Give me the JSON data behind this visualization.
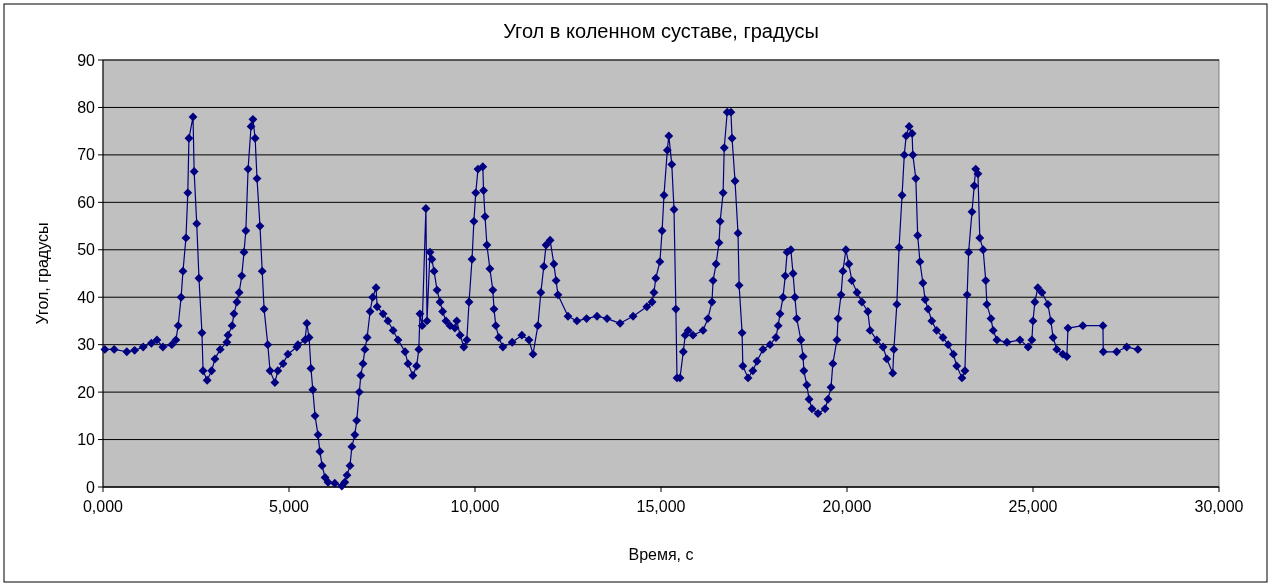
{
  "chart_data": {
    "type": "line",
    "title": "Угол в коленном суставе, градусы",
    "xlabel": "Время, с",
    "ylabel": "Угол, градусы",
    "marker": "diamond",
    "line_style": "solid",
    "grid": "y",
    "xlim": [
      0,
      30000
    ],
    "xticks": [
      {
        "value": 0,
        "label": "0,000"
      },
      {
        "value": 5000,
        "label": "5,000"
      },
      {
        "value": 10000,
        "label": "10,000"
      },
      {
        "value": 15000,
        "label": "15,000"
      },
      {
        "value": 20000,
        "label": "20,000"
      },
      {
        "value": 25000,
        "label": "25,000"
      },
      {
        "value": 30000,
        "label": "30,000"
      }
    ],
    "ylim": [
      0,
      90
    ],
    "yticks": [
      0,
      10,
      20,
      30,
      40,
      50,
      60,
      70,
      80,
      90
    ],
    "series": [
      {
        "color": "#000080",
        "x": [
          50,
          300,
          640,
          850,
          1080,
          1300,
          1450,
          1610,
          1850,
          1960,
          2020,
          2100,
          2150,
          2230,
          2280,
          2310,
          2420,
          2450,
          2520,
          2580,
          2660,
          2690,
          2800,
          2920,
          3010,
          3150,
          3330,
          3360,
          3470,
          3520,
          3600,
          3660,
          3730,
          3790,
          3840,
          3900,
          3980,
          4030,
          4090,
          4140,
          4220,
          4280,
          4330,
          4430,
          4490,
          4620,
          4700,
          4840,
          4970,
          5210,
          5240,
          5430,
          5480,
          5540,
          5590,
          5640,
          5700,
          5780,
          5830,
          5890,
          5970,
          6050,
          6230,
          6420,
          6500,
          6560,
          6640,
          6690,
          6770,
          6820,
          6890,
          6930,
          6990,
          7040,
          7100,
          7180,
          7250,
          7340,
          7370,
          7530,
          7660,
          7800,
          7930,
          8120,
          8200,
          8330,
          8430,
          8490,
          8520,
          8580,
          8680,
          8710,
          8790,
          8840,
          8900,
          8980,
          9060,
          9130,
          9220,
          9330,
          9460,
          9510,
          9600,
          9700,
          9780,
          9840,
          9920,
          9970,
          10020,
          10080,
          10210,
          10230,
          10270,
          10320,
          10400,
          10480,
          10510,
          10560,
          10640,
          10750,
          11000,
          11260,
          11450,
          11560,
          11690,
          11770,
          11850,
          11910,
          12020,
          12120,
          12180,
          12230,
          12500,
          12740,
          13000,
          13280,
          13550,
          13900,
          14250,
          14620,
          14760,
          14810,
          14860,
          14970,
          15030,
          15080,
          15170,
          15210,
          15290,
          15350,
          15400,
          15430,
          15510,
          15600,
          15650,
          15730,
          15860,
          16130,
          16260,
          16370,
          16400,
          16480,
          16560,
          16590,
          16670,
          16700,
          16780,
          16880,
          16910,
          16990,
          17070,
          17100,
          17180,
          17200,
          17340,
          17470,
          17580,
          17740,
          17930,
          18090,
          18150,
          18200,
          18280,
          18340,
          18390,
          18490,
          18550,
          18600,
          18650,
          18760,
          18820,
          18840,
          18920,
          18980,
          19060,
          19220,
          19410,
          19490,
          19570,
          19620,
          19730,
          19760,
          19840,
          19890,
          19970,
          20050,
          20130,
          20270,
          20400,
          20560,
          20620,
          20800,
          20970,
          21070,
          21230,
          21260,
          21340,
          21400,
          21480,
          21540,
          21590,
          21670,
          21750,
          21770,
          21850,
          21900,
          21960,
          22040,
          22100,
          22180,
          22280,
          22410,
          22580,
          22720,
          22860,
          22950,
          23090,
          23170,
          23230,
          23270,
          23360,
          23420,
          23460,
          23520,
          23570,
          23660,
          23730,
          23760,
          23870,
          23930,
          24030,
          24300,
          24650,
          24870,
          24970,
          25000,
          25050,
          25130,
          25240,
          25400,
          25480,
          25540,
          25640,
          25800,
          25910,
          25940,
          26340,
          26880,
          26890,
          27250,
          27520,
          27820
        ],
        "values": [
          29,
          29,
          28.5,
          28.8,
          29.5,
          30.3,
          31,
          29.5,
          30,
          31,
          34,
          40,
          45.5,
          52.5,
          62,
          73.5,
          78,
          66.5,
          55.5,
          44,
          32.5,
          24.5,
          22.5,
          24.5,
          27,
          29,
          30.5,
          32,
          34,
          36.5,
          39,
          41,
          44.5,
          49.5,
          54,
          67,
          76,
          77.5,
          73.5,
          65,
          55,
          45.5,
          37.5,
          30,
          24.5,
          22,
          24.5,
          26,
          28,
          29.5,
          30,
          31,
          34.5,
          31.5,
          25,
          20.5,
          15,
          11,
          7.5,
          4.5,
          2,
          1,
          0.8,
          0.2,
          1,
          2.5,
          4.5,
          8.5,
          11,
          14,
          20,
          23.5,
          26,
          29,
          31.5,
          37,
          40,
          42,
          38,
          36.5,
          35,
          33,
          31,
          28.5,
          26,
          23.5,
          25.5,
          29,
          36.5,
          34,
          58.7,
          35,
          49.5,
          48,
          45.5,
          41.5,
          39,
          37,
          35,
          34,
          33.5,
          35,
          32,
          29.5,
          31,
          39,
          48,
          56,
          62,
          67,
          67.5,
          62.5,
          57,
          51,
          46,
          41.5,
          37.5,
          34,
          31.5,
          29.5,
          30.5,
          32,
          31,
          28,
          34,
          41,
          46.5,
          51,
          52,
          47,
          43.5,
          40.5,
          36,
          35,
          35.5,
          36,
          35.5,
          34.5,
          36,
          38,
          39,
          41,
          44,
          47.5,
          54,
          61.5,
          71,
          74,
          68,
          58.5,
          37.5,
          23,
          23,
          28.5,
          32,
          33,
          32,
          33,
          35.5,
          39,
          43.5,
          47,
          51.5,
          56,
          62,
          71.5,
          79,
          79,
          73.5,
          64.5,
          53.5,
          42.5,
          32.5,
          25.5,
          23,
          24.5,
          26.5,
          29,
          30,
          31.5,
          34,
          36.5,
          40,
          44.5,
          49.5,
          50,
          45,
          40,
          35.5,
          31,
          27.5,
          24.5,
          21.5,
          18.5,
          16.5,
          15.5,
          16.5,
          18.5,
          21,
          26,
          31,
          35.5,
          40.5,
          45.5,
          50,
          47,
          43.5,
          41,
          39,
          37,
          33,
          31,
          29.5,
          27,
          24,
          29,
          38.5,
          50.5,
          61.5,
          70,
          74,
          76,
          74.5,
          70,
          65,
          53,
          47.5,
          43,
          39.5,
          37.5,
          35,
          33,
          31.5,
          30,
          28,
          25.5,
          23,
          24.5,
          40.5,
          49.5,
          58,
          63.5,
          67,
          66,
          52.5,
          50,
          43.5,
          38.5,
          35.5,
          33,
          31,
          30.5,
          31,
          29.5,
          31,
          35,
          39,
          42,
          41,
          38.5,
          35,
          31.5,
          29,
          28,
          27.5,
          33.5,
          34,
          34,
          28.5,
          28.5,
          29.5,
          29
        ]
      }
    ]
  }
}
